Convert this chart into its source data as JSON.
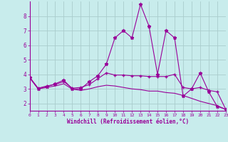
{
  "xlabel": "Windchill (Refroidissement éolien,°C)",
  "xlim": [
    0,
    23
  ],
  "ylim": [
    1.5,
    9.0
  ],
  "yticks": [
    2,
    3,
    4,
    5,
    6,
    7,
    8
  ],
  "xticks": [
    0,
    1,
    2,
    3,
    4,
    5,
    6,
    7,
    8,
    9,
    10,
    11,
    12,
    13,
    14,
    15,
    16,
    17,
    18,
    19,
    20,
    21,
    22,
    23
  ],
  "bg_color": "#c8ecec",
  "line_color": "#990099",
  "grid_color": "#aacccc",
  "series1": [
    3.8,
    3.0,
    3.15,
    3.35,
    3.6,
    3.0,
    3.0,
    3.5,
    3.9,
    4.7,
    6.5,
    7.0,
    6.5,
    8.8,
    7.3,
    4.0,
    7.0,
    6.5,
    2.5,
    3.0,
    4.1,
    2.8,
    1.8,
    1.6
  ],
  "series2": [
    3.8,
    3.05,
    3.2,
    3.3,
    3.5,
    3.05,
    3.1,
    3.3,
    3.7,
    4.1,
    3.95,
    3.95,
    3.9,
    3.9,
    3.85,
    3.85,
    3.85,
    4.0,
    3.1,
    3.0,
    3.1,
    2.9,
    2.8,
    1.6
  ],
  "series3": [
    3.75,
    3.0,
    3.1,
    3.2,
    3.35,
    2.98,
    2.9,
    3.0,
    3.15,
    3.25,
    3.2,
    3.1,
    3.0,
    2.95,
    2.85,
    2.85,
    2.75,
    2.7,
    2.55,
    2.35,
    2.15,
    2.0,
    1.85,
    1.6
  ]
}
